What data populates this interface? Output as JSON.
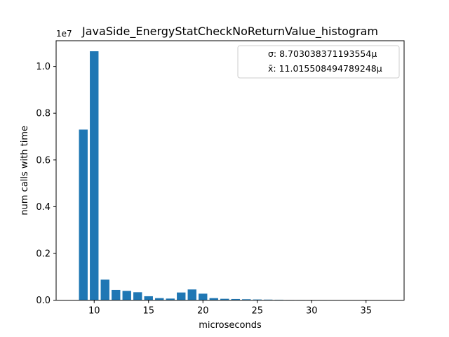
{
  "chart_data": {
    "type": "bar",
    "title": "JavaSide_EnergyStatCheckNoReturnValue_histogram",
    "xlabel": "microseconds",
    "ylabel": "num calls with time",
    "y_offset_label": "1e7",
    "xlim": [
      6.5,
      38.5
    ],
    "ylim": [
      0,
      11100000
    ],
    "xticks": [
      10,
      15,
      20,
      25,
      30,
      35
    ],
    "yticks": [
      0,
      2000000,
      4000000,
      6000000,
      8000000,
      10000000
    ],
    "ytick_labels": [
      "0.0",
      "0.2",
      "0.4",
      "0.6",
      "0.8",
      "1.0"
    ],
    "bar_width": 0.8,
    "bar_color": "#1f77b4",
    "legend_position": "upper right",
    "legend": [
      "σ: 8.703038371193554µ",
      "x̄: 11.015508494789248µ"
    ],
    "bars": [
      {
        "x": 9,
        "y": 7300000
      },
      {
        "x": 10,
        "y": 10650000
      },
      {
        "x": 11,
        "y": 880000
      },
      {
        "x": 12,
        "y": 440000
      },
      {
        "x": 13,
        "y": 400000
      },
      {
        "x": 14,
        "y": 340000
      },
      {
        "x": 15,
        "y": 170000
      },
      {
        "x": 16,
        "y": 90000
      },
      {
        "x": 17,
        "y": 70000
      },
      {
        "x": 18,
        "y": 330000
      },
      {
        "x": 19,
        "y": 460000
      },
      {
        "x": 20,
        "y": 280000
      },
      {
        "x": 21,
        "y": 90000
      },
      {
        "x": 22,
        "y": 60000
      },
      {
        "x": 23,
        "y": 50000
      },
      {
        "x": 24,
        "y": 40000
      },
      {
        "x": 25,
        "y": 30000
      },
      {
        "x": 26,
        "y": 25000
      },
      {
        "x": 27,
        "y": 20000
      },
      {
        "x": 28,
        "y": 10000
      },
      {
        "x": 29,
        "y": 8000
      },
      {
        "x": 30,
        "y": 6000
      },
      {
        "x": 31,
        "y": 5000
      },
      {
        "x": 32,
        "y": 4000
      },
      {
        "x": 33,
        "y": 3000
      },
      {
        "x": 34,
        "y": 3000
      },
      {
        "x": 35,
        "y": 2000
      },
      {
        "x": 36,
        "y": 2000
      },
      {
        "x": 37,
        "y": 2000
      }
    ]
  }
}
